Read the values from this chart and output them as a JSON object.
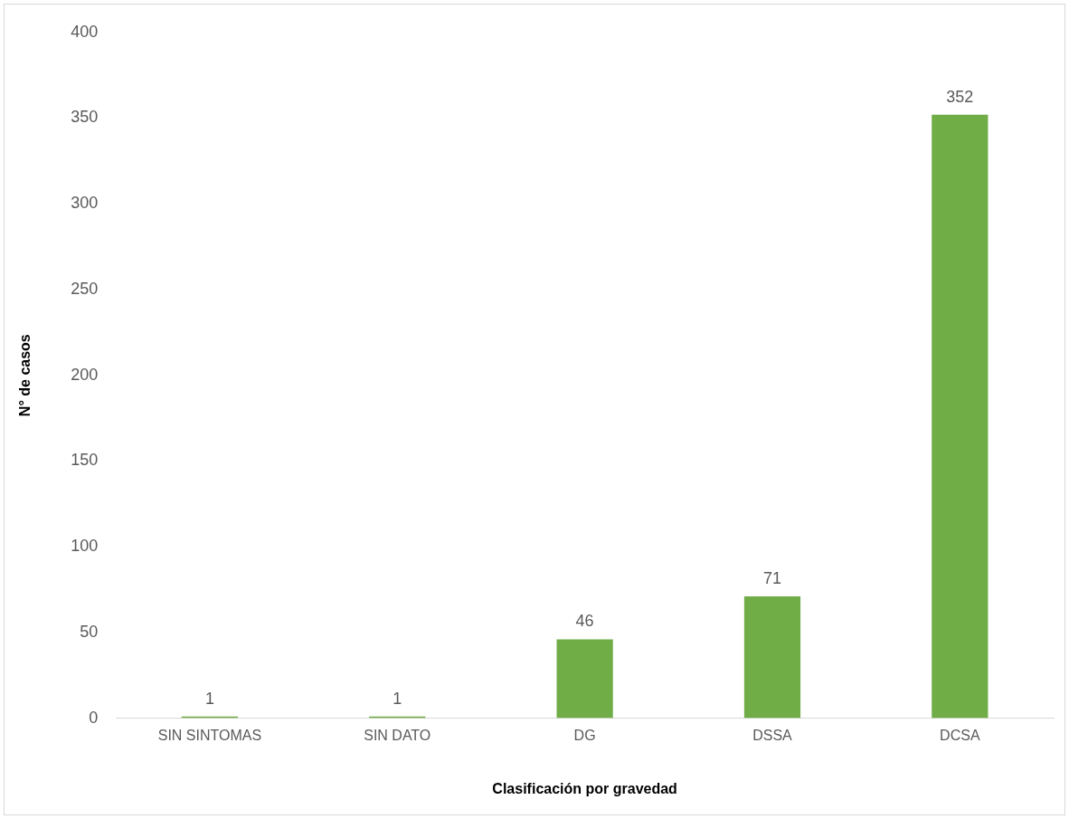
{
  "chart_data": {
    "type": "bar",
    "xlabel": "Clasificación por gravedad",
    "ylabel": "N° de casos",
    "categories": [
      "SIN SINTOMAS",
      "SIN DATO",
      "DG",
      "DSSA",
      "DCSA"
    ],
    "values": [
      1,
      1,
      46,
      71,
      352
    ],
    "color": "#70ad47",
    "ylim": [
      0,
      400
    ],
    "yticks": [
      0,
      50,
      100,
      150,
      200,
      250,
      300,
      350,
      400
    ],
    "grid": false,
    "data_labels": true,
    "legend": false
  }
}
